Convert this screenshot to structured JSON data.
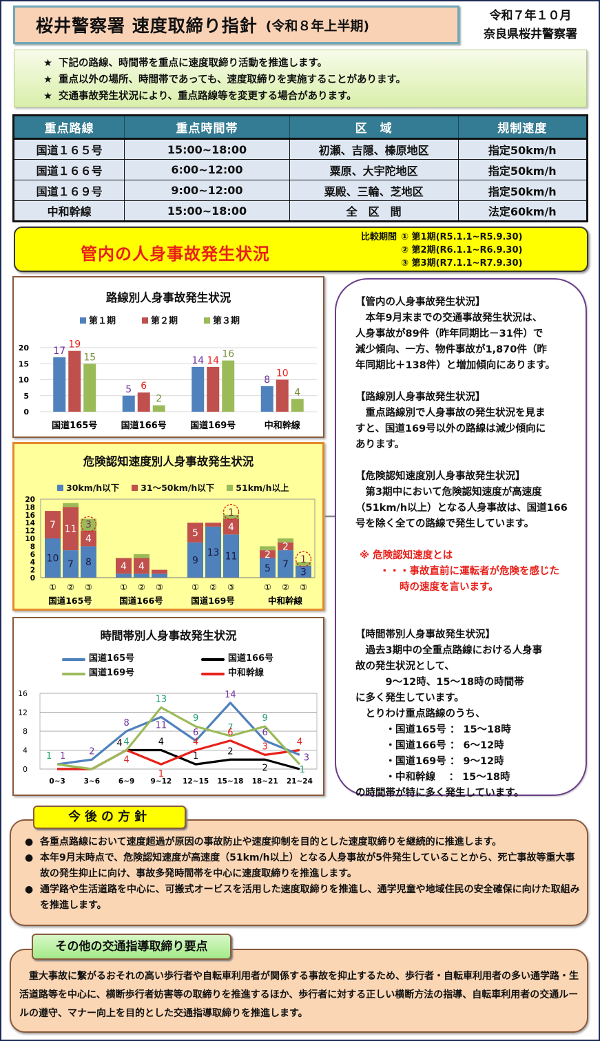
{
  "header": {
    "title": "桜井警察署 速度取締り指針",
    "subtitle": "(令和８年上半期)",
    "date": "令和７年１０月",
    "issuer": "奈良県桜井警察署"
  },
  "notice": {
    "bullet_icon": "star-icon",
    "lines": [
      "下記の路線、時間帯を重点に速度取締り活動を推進します。",
      "重点以外の場所、時間帯であっても、速度取締りを実施することがあります。",
      "交通事故発生状況により、重点路線等を変更する場合があります。"
    ]
  },
  "table": {
    "headers": [
      "重点路線",
      "重点時間帯",
      "区　域",
      "規制速度"
    ],
    "rows": [
      [
        "国道１６５号",
        "15:00~18:00",
        "初瀬、吉隠、榛原地区",
        "指定50km/h"
      ],
      [
        "国道１６６号",
        "6:00~12:00",
        "粟原、大宇陀地区",
        "指定50km/h"
      ],
      [
        "国道１６９号",
        "9:00~12:00",
        "粟殿、三輪、芝地区",
        "指定50km/h"
      ],
      [
        "中和幹線",
        "15:00~18:00",
        "全　区　間",
        "法定60km/h"
      ]
    ]
  },
  "banner": {
    "title": "管内の人身事故発生状況",
    "periods_label": "比較期間",
    "periods": [
      {
        "mark": "①",
        "text": "第1期(R5.1.1~R5.9.30)"
      },
      {
        "mark": "②",
        "text": "第2期(R6.1.1~R6.9.30)"
      },
      {
        "mark": "③",
        "text": "第3期(R7.1.1~R7.9.30)"
      }
    ]
  },
  "colors": {
    "blue": "#4f81bd",
    "red": "#c0504d",
    "green": "#9bbb59",
    "black": "#000000",
    "line_red": "#e8201a",
    "accent_red": "#e8201a"
  },
  "chart_data": [
    {
      "type": "bar",
      "title": "路線別人身事故発生状況",
      "categories": [
        "国道165号",
        "国道166号",
        "国道169号",
        "中和幹線"
      ],
      "series": [
        {
          "name": "第１期",
          "values": [
            17,
            5,
            14,
            8
          ]
        },
        {
          "name": "第２期",
          "values": [
            19,
            6,
            14,
            10
          ]
        },
        {
          "name": "第３期",
          "values": [
            15,
            2,
            16,
            4
          ]
        }
      ],
      "yticks": [
        0,
        5,
        10,
        15,
        20
      ],
      "ylim": [
        0,
        20
      ],
      "grid": true,
      "legend_position": "top"
    },
    {
      "type": "bar",
      "stacked": true,
      "title": "危険認知速度別人身事故発生状況",
      "categories": [
        "国道165号",
        "国道166号",
        "国道169号",
        "中和幹線"
      ],
      "sub_categories": [
        "①",
        "②",
        "③"
      ],
      "series": [
        {
          "name": "30km/h以下",
          "values": [
            [
              10,
              7,
              8
            ],
            [
              1,
              1,
              1
            ],
            [
              9,
              13,
              11
            ],
            [
              5,
              7,
              3
            ]
          ]
        },
        {
          "name": "31～50km/h以下",
          "values": [
            [
              7,
              11,
              4
            ],
            [
              4,
              4,
              1
            ],
            [
              5,
              1,
              4
            ],
            [
              2,
              2,
              0
            ]
          ]
        },
        {
          "name": "51km/h以上",
          "values": [
            [
              0,
              1,
              3
            ],
            [
              0,
              1,
              0
            ],
            [
              0,
              0,
              1
            ],
            [
              1,
              1,
              1
            ]
          ]
        }
      ],
      "yticks": [
        0,
        2,
        4,
        6,
        8,
        10,
        12,
        14,
        16,
        18,
        20
      ],
      "ylim": [
        0,
        20
      ],
      "annotations": [
        "国道165号③ 51km/h以上 3 (circled)",
        "国道169号③ 51km/h以上 1 (circled)",
        "中和幹線③ 51km/h以上 1 (circled)"
      ],
      "legend_position": "top"
    },
    {
      "type": "line",
      "title": "時間帯別人身事故発生状況",
      "x": [
        "0~3",
        "3~6",
        "6~9",
        "9~12",
        "12~15",
        "15~18",
        "18~21",
        "21~24"
      ],
      "series": [
        {
          "name": "国道165号",
          "values": [
            1,
            2,
            8,
            11,
            6,
            14,
            6,
            3
          ]
        },
        {
          "name": "国道166号",
          "values": [
            0,
            0,
            4,
            4,
            1,
            2,
            2,
            0
          ]
        },
        {
          "name": "国道169号",
          "values": [
            1,
            0,
            4,
            13,
            9,
            7,
            9,
            1
          ]
        },
        {
          "name": "中和幹線",
          "values": [
            0,
            0,
            4,
            1,
            4,
            6,
            3,
            4
          ]
        }
      ],
      "yticks": [
        0,
        4,
        8,
        12,
        16
      ],
      "ylim": [
        0,
        16
      ],
      "grid": true,
      "legend_position": "top"
    }
  ],
  "commentary": {
    "s1_head": "【管内の人身事故発生状況】",
    "s1_lines": [
      "　本年9月末までの交通事故発生状況は、",
      "人身事故が89件（昨年同期比－31件）で",
      "減少傾向、一方、物件事故が1,870件（昨",
      "年同期比＋138件）と増加傾向にあります。"
    ],
    "s2_head": "【路線別人身事故発生状況】",
    "s2_lines": [
      "　重点路線別で人身事故の発生状況を見ま",
      "すと、国道169号以外の路線は減少傾向に",
      "あります。"
    ],
    "s3_head": "【危険認知速度別人身事故発生状況】",
    "s3_lines": [
      "　第3期中において危険認知速度が高速度",
      "（51km/h以上）となる人身事故は、国道166",
      "号を除く全ての路線で発生しています。"
    ],
    "note_lines": [
      "※ 危険認知速度とは",
      "　　・・・事故直前に運転者が危険を感じた",
      "　　　　時の速度を言います。"
    ],
    "s4_head": "【時間帯別人身事故発生状況】",
    "s4_lines": [
      "　過去3期中の全重点路線における人身事",
      "故の発生状況として、",
      "　　　9～12時、15～18時の時間帯",
      "に多く発生しています。",
      "　とりわけ重点路線のうち、",
      "　　　・国道165号 ： 15～18時",
      "　　　・国道166号 ：  6～12時",
      "　　　・国道169号 ：  9～12時",
      "　　　・中和幹線　 ： 15～18時",
      "の時間帯が特に多く発生しています。"
    ]
  },
  "policy": {
    "tab": "今後の方針",
    "bullet_icon": "circle-bullet-icon",
    "items": [
      "各重点路線において速度超過が原因の事故防止や速度抑制を目的とした速度取締りを継続的に推進します。",
      "本年9月末時点で、危険認知速度が高速度（51km/h以上）となる人身事故が5件発生していることから、死亡事故等重大事故の発生抑止に向け、事故多発時間帯を中心に速度取締りを推進します。",
      "通学路や生活道路を中心に、可搬式オービスを活用した速度取締りを推進し、通学児童や地域住民の安全確保に向けた取組みを推進します。"
    ]
  },
  "other": {
    "tab": "その他の交通指導取締り要点",
    "body": "重大事故に繋がるおそれの高い歩行者や自転車利用者が関係する事故を抑止するため、歩行者・自転車利用者の多い通学路・生活道路等を中心に、横断歩行者妨害等の取締りを推進するほか、歩行者に対する正しい横断方法の指導、自転車利用者の交通ルールの遵守、マナー向上を目的とした交通指導取締りを推進します。"
  }
}
